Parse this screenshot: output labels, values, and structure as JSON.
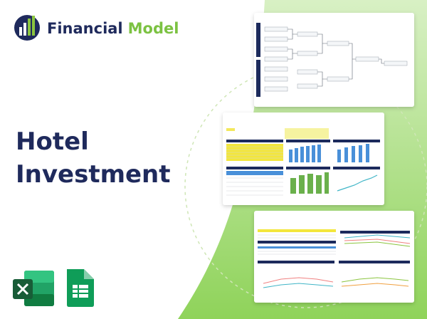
{
  "brand": {
    "first": "Financial",
    "second": "Model"
  },
  "title": {
    "lines": [
      "Hotel",
      "Investment"
    ]
  }
}
